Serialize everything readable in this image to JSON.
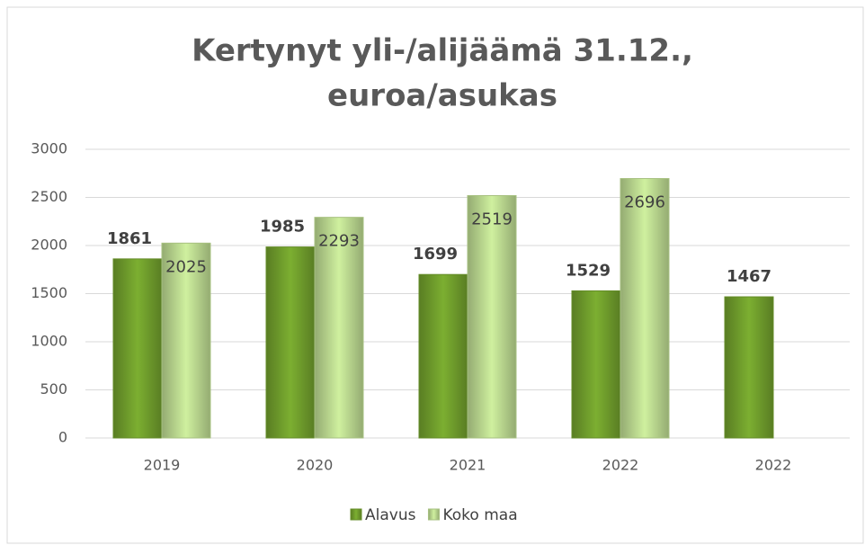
{
  "chart_data": {
    "type": "bar",
    "title": [
      "Kertynyt yli-/alijäämä 31.12.,",
      "euroa/asukas"
    ],
    "categories": [
      "2019",
      "2020",
      "2021",
      "2022",
      "2022"
    ],
    "series": [
      {
        "name": "Alavus",
        "color": "#6f9c2c",
        "values": [
          1861,
          1985,
          1699,
          1529,
          1467
        ]
      },
      {
        "name": "Koko maa",
        "color": "#b9d68e",
        "values": [
          2025,
          2293,
          2519,
          2696,
          null
        ]
      }
    ],
    "ylim": [
      0,
      3000
    ],
    "yticks": [
      0,
      500,
      1000,
      1500,
      2000,
      2500,
      3000
    ],
    "grid": true,
    "legend": "bottom"
  }
}
